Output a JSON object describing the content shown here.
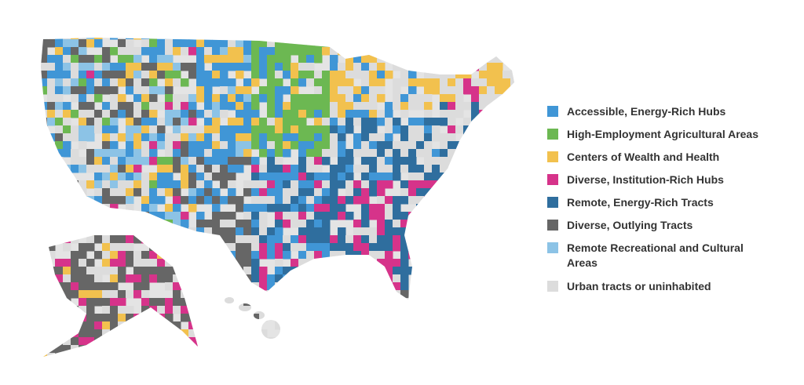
{
  "legend": {
    "items": [
      {
        "label": "Accessible, Energy-Rich Hubs",
        "color": "#4096d6"
      },
      {
        "label": "High-Employment Agricultural Areas",
        "color": "#6cb852"
      },
      {
        "label": "Centers of Wealth and Health",
        "color": "#f2c14e"
      },
      {
        "label": "Diverse, Institution-Rich Hubs",
        "color": "#d6338a"
      },
      {
        "label": "Remote, Energy-Rich Tracts",
        "color": "#2f6e9e"
      },
      {
        "label": "Diverse, Outlying Tracts",
        "color": "#666666"
      },
      {
        "label": [
          "Remote Recreational and Cultural",
          "Areas"
        ],
        "color": "#8cc3e6"
      },
      {
        "label": "Urban tracts or uninhabited",
        "color": "#dcdcdc"
      }
    ]
  }
}
